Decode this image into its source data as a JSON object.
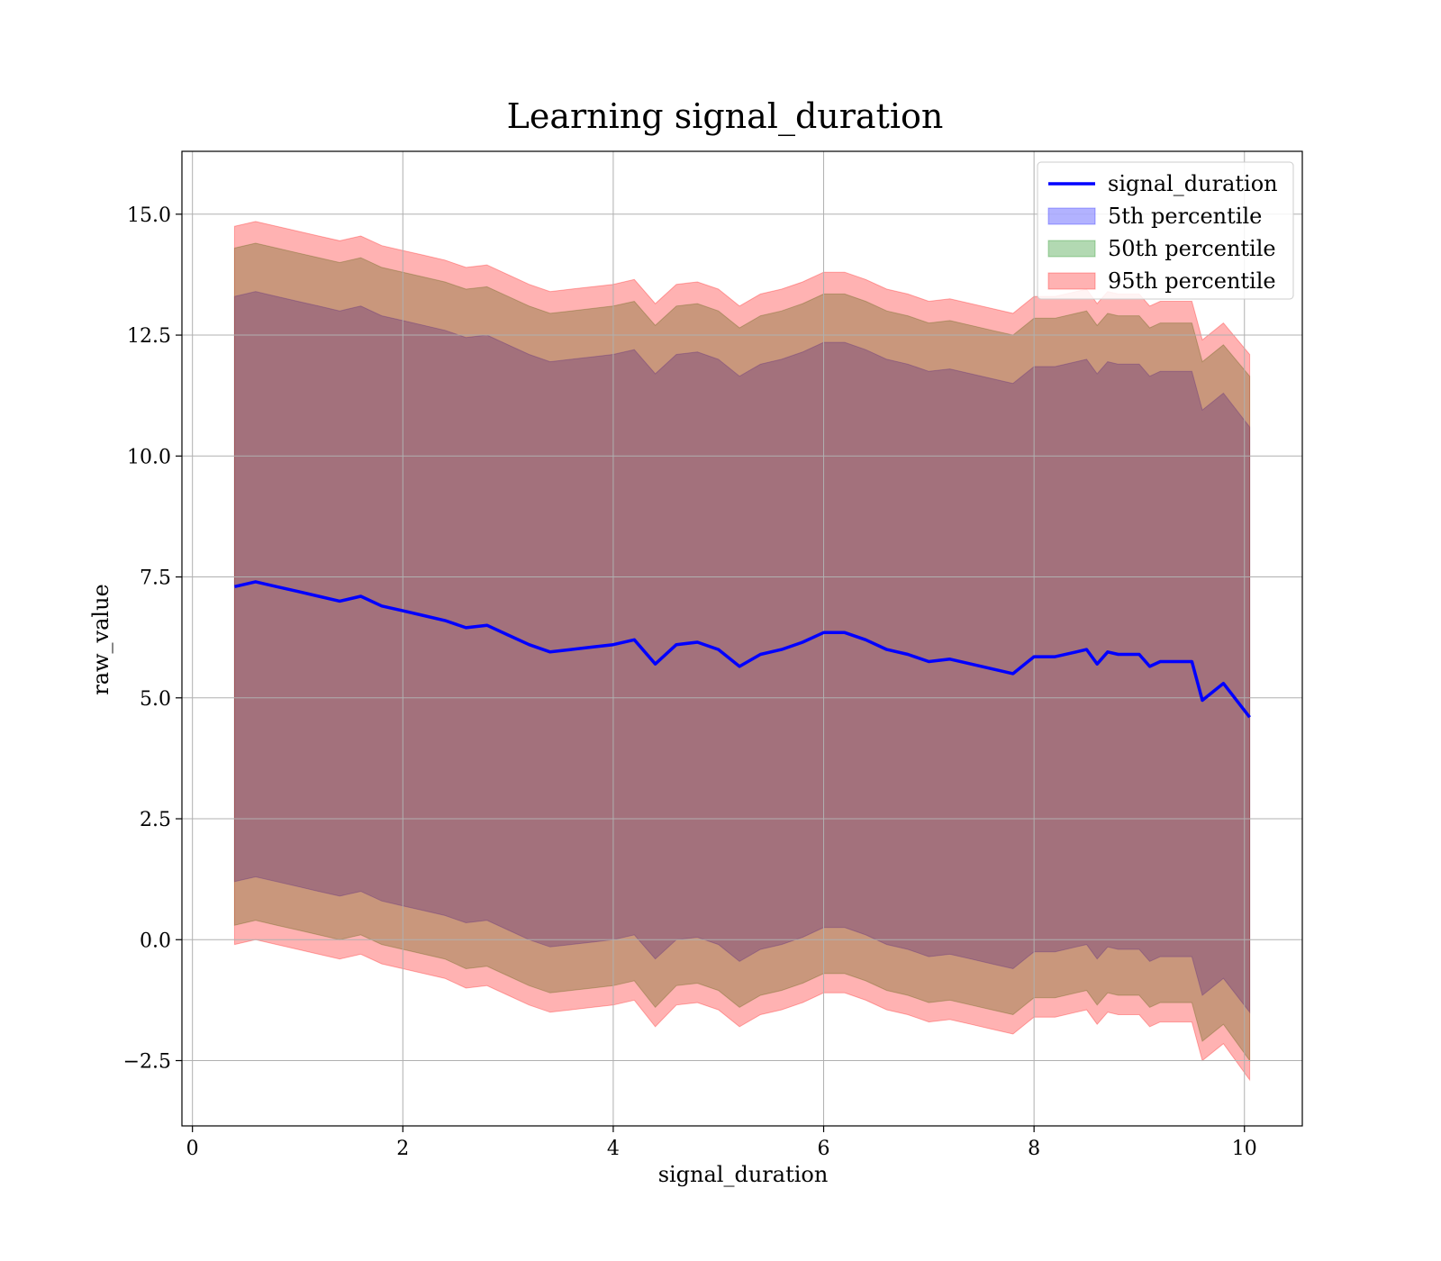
{
  "chart_data": {
    "type": "area",
    "title": "Learning signal_duration",
    "xlabel": "signal_duration",
    "ylabel": "raw_value",
    "xlim": [
      -0.1,
      10.55
    ],
    "ylim": [
      -3.85,
      16.3
    ],
    "xticks": [
      0,
      2,
      4,
      6,
      8,
      10
    ],
    "yticks": [
      -2.5,
      0.0,
      2.5,
      5.0,
      7.5,
      10.0,
      12.5,
      15.0
    ],
    "xtick_labels": [
      "0",
      "2",
      "4",
      "6",
      "8",
      "10"
    ],
    "ytick_labels": [
      "−2.5",
      "0.0",
      "2.5",
      "5.0",
      "7.5",
      "10.0",
      "12.5",
      "15.0"
    ],
    "grid": true,
    "legend_position": "top-right",
    "x": [
      0.4,
      0.6,
      0.8,
      1.0,
      1.2,
      1.4,
      1.6,
      1.8,
      2.0,
      2.2,
      2.4,
      2.6,
      2.8,
      3.0,
      3.2,
      3.4,
      3.6,
      3.8,
      4.0,
      4.2,
      4.4,
      4.6,
      4.8,
      5.0,
      5.2,
      5.4,
      5.6,
      5.8,
      6.0,
      6.2,
      6.4,
      6.6,
      6.8,
      7.0,
      7.2,
      7.4,
      7.6,
      7.8,
      8.0,
      8.2,
      8.4,
      8.5,
      8.6,
      8.7,
      8.8,
      9.0,
      9.1,
      9.2,
      9.5,
      9.6,
      9.8,
      10.05
    ],
    "series": [
      {
        "name": "signal_duration",
        "kind": "line",
        "color": "#0000ff",
        "values": [
          7.3,
          7.4,
          7.3,
          7.2,
          7.1,
          7.0,
          7.1,
          6.9,
          6.8,
          6.7,
          6.6,
          6.45,
          6.5,
          6.3,
          6.1,
          5.95,
          6.0,
          6.05,
          6.1,
          6.2,
          5.7,
          6.1,
          6.15,
          6.0,
          5.65,
          5.9,
          6.0,
          6.15,
          6.35,
          6.35,
          6.2,
          6.0,
          5.9,
          5.75,
          5.8,
          5.7,
          5.6,
          5.5,
          5.85,
          5.85,
          5.95,
          6.0,
          5.7,
          5.95,
          5.9,
          5.9,
          5.65,
          5.75,
          5.75,
          4.95,
          5.3,
          4.6
        ]
      },
      {
        "name": "5th percentile",
        "kind": "band",
        "color": "#0000ff",
        "opacity": 0.3,
        "lower": [
          1.2,
          1.3,
          1.2,
          1.1,
          1.0,
          0.9,
          1.0,
          0.8,
          0.7,
          0.6,
          0.5,
          0.35,
          0.4,
          0.2,
          0.0,
          -0.15,
          -0.1,
          -0.05,
          0.0,
          0.1,
          -0.4,
          0.0,
          0.05,
          -0.1,
          -0.45,
          -0.2,
          -0.1,
          0.05,
          0.25,
          0.25,
          0.1,
          -0.1,
          -0.2,
          -0.35,
          -0.3,
          -0.4,
          -0.5,
          -0.6,
          -0.25,
          -0.25,
          -0.15,
          -0.1,
          -0.4,
          -0.15,
          -0.2,
          -0.2,
          -0.45,
          -0.35,
          -0.35,
          -1.15,
          -0.8,
          -1.5
        ],
        "upper": [
          13.3,
          13.4,
          13.3,
          13.2,
          13.1,
          13.0,
          13.1,
          12.9,
          12.8,
          12.7,
          12.6,
          12.45,
          12.5,
          12.3,
          12.1,
          11.95,
          12.0,
          12.05,
          12.1,
          12.2,
          11.7,
          12.1,
          12.15,
          12.0,
          11.65,
          11.9,
          12.0,
          12.15,
          12.35,
          12.35,
          12.2,
          12.0,
          11.9,
          11.75,
          11.8,
          11.7,
          11.6,
          11.5,
          11.85,
          11.85,
          11.95,
          12.0,
          11.7,
          11.95,
          11.9,
          11.9,
          11.65,
          11.75,
          11.75,
          10.95,
          11.3,
          10.6
        ]
      },
      {
        "name": "50th percentile",
        "kind": "band",
        "color": "#008000",
        "opacity": 0.3,
        "lower": [
          0.3,
          0.4,
          0.3,
          0.2,
          0.1,
          0.0,
          0.1,
          -0.1,
          -0.2,
          -0.3,
          -0.4,
          -0.6,
          -0.55,
          -0.75,
          -0.95,
          -1.1,
          -1.05,
          -1.0,
          -0.95,
          -0.85,
          -1.4,
          -0.95,
          -0.9,
          -1.05,
          -1.4,
          -1.15,
          -1.05,
          -0.9,
          -0.7,
          -0.7,
          -0.85,
          -1.05,
          -1.15,
          -1.3,
          -1.25,
          -1.35,
          -1.45,
          -1.55,
          -1.2,
          -1.2,
          -1.1,
          -1.05,
          -1.35,
          -1.1,
          -1.15,
          -1.15,
          -1.4,
          -1.3,
          -1.3,
          -2.1,
          -1.75,
          -2.5
        ],
        "upper": [
          14.3,
          14.4,
          14.3,
          14.2,
          14.1,
          14.0,
          14.1,
          13.9,
          13.8,
          13.7,
          13.6,
          13.45,
          13.5,
          13.3,
          13.1,
          12.95,
          13.0,
          13.05,
          13.1,
          13.2,
          12.7,
          13.1,
          13.15,
          13.0,
          12.65,
          12.9,
          13.0,
          13.15,
          13.35,
          13.35,
          13.2,
          13.0,
          12.9,
          12.75,
          12.8,
          12.7,
          12.6,
          12.5,
          12.85,
          12.85,
          12.95,
          13.0,
          12.7,
          12.95,
          12.9,
          12.9,
          12.65,
          12.75,
          12.75,
          11.95,
          12.3,
          11.65
        ]
      },
      {
        "name": "95th percentile",
        "kind": "band",
        "color": "#ff0000",
        "opacity": 0.3,
        "lower": [
          -0.1,
          0.0,
          -0.1,
          -0.2,
          -0.3,
          -0.4,
          -0.3,
          -0.5,
          -0.6,
          -0.7,
          -0.8,
          -1.0,
          -0.95,
          -1.15,
          -1.35,
          -1.5,
          -1.45,
          -1.4,
          -1.35,
          -1.25,
          -1.8,
          -1.35,
          -1.3,
          -1.45,
          -1.8,
          -1.55,
          -1.45,
          -1.3,
          -1.1,
          -1.1,
          -1.25,
          -1.45,
          -1.55,
          -1.7,
          -1.65,
          -1.75,
          -1.85,
          -1.95,
          -1.6,
          -1.6,
          -1.5,
          -1.45,
          -1.75,
          -1.5,
          -1.55,
          -1.55,
          -1.8,
          -1.7,
          -1.7,
          -2.5,
          -2.15,
          -2.9
        ],
        "upper": [
          14.75,
          14.85,
          14.75,
          14.65,
          14.55,
          14.45,
          14.55,
          14.35,
          14.25,
          14.15,
          14.05,
          13.9,
          13.95,
          13.75,
          13.55,
          13.4,
          13.45,
          13.5,
          13.55,
          13.65,
          13.15,
          13.55,
          13.6,
          13.45,
          13.1,
          13.35,
          13.45,
          13.6,
          13.8,
          13.8,
          13.65,
          13.45,
          13.35,
          13.2,
          13.25,
          13.15,
          13.05,
          12.95,
          13.3,
          13.3,
          13.4,
          13.45,
          13.15,
          13.4,
          13.35,
          13.35,
          13.1,
          13.2,
          13.2,
          12.4,
          12.75,
          12.1
        ]
      }
    ]
  }
}
